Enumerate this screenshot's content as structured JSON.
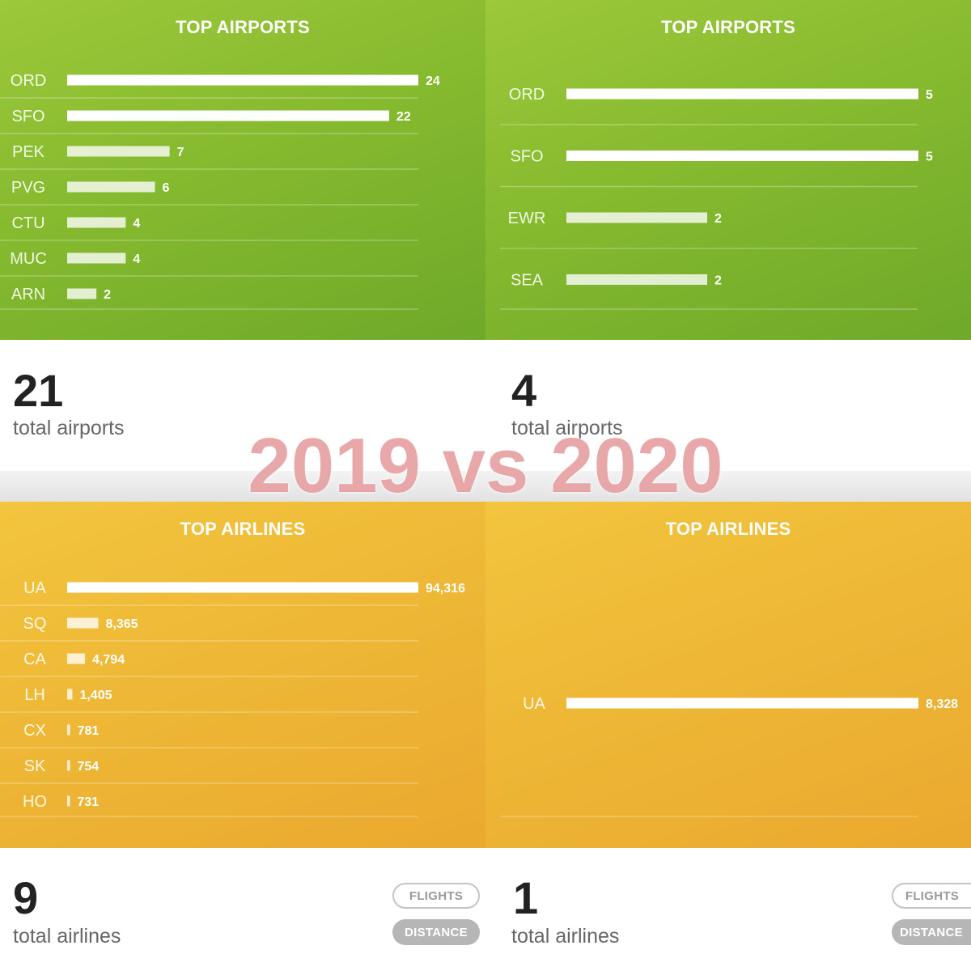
{
  "overlay_text": "2019 vs 2020",
  "panels": {
    "tl": {
      "title": "TOP AIRPORTS",
      "stat_number": "21",
      "stat_label": "total airports"
    },
    "tr": {
      "title": "TOP AIRPORTS",
      "stat_number": "4",
      "stat_label": "total airports"
    },
    "bl": {
      "title": "TOP AIRLINES",
      "stat_number": "9",
      "stat_label": "total airlines"
    },
    "br": {
      "title": "TOP AIRLINES",
      "stat_number": "1",
      "stat_label": "total airlines"
    }
  },
  "buttons": {
    "flights_label": "FLIGHTS",
    "distance_label": "DISTANCE"
  },
  "colors": {
    "airports_bg": "#86ba2f",
    "airlines_bg": "#eeb836",
    "bar": "#ffffff"
  },
  "chart_data": [
    {
      "type": "bar",
      "title": "TOP AIRPORTS",
      "categories": [
        "ORD",
        "SFO",
        "PEK",
        "PVG",
        "CTU",
        "MUC",
        "ARN"
      ],
      "values": [
        24,
        22,
        7,
        6,
        4,
        4,
        2
      ],
      "labels": [
        "24",
        "22",
        "7",
        "6",
        "4",
        "4",
        "2"
      ],
      "max": 24,
      "orientation": "horizontal"
    },
    {
      "type": "bar",
      "title": "TOP AIRPORTS",
      "categories": [
        "ORD",
        "SFO",
        "EWR",
        "SEA"
      ],
      "values": [
        5,
        5,
        2,
        2
      ],
      "labels": [
        "5",
        "5",
        "2",
        "2"
      ],
      "max": 5,
      "orientation": "horizontal"
    },
    {
      "type": "bar",
      "title": "TOP AIRLINES",
      "categories": [
        "UA",
        "SQ",
        "CA",
        "LH",
        "CX",
        "SK",
        "HO"
      ],
      "values": [
        94316,
        8365,
        4794,
        1405,
        781,
        754,
        731
      ],
      "labels": [
        "94,316",
        "8,365",
        "4,794",
        "1,405",
        "781",
        "754",
        "731"
      ],
      "max": 94316,
      "orientation": "horizontal"
    },
    {
      "type": "bar",
      "title": "TOP AIRLINES",
      "categories": [
        "UA"
      ],
      "values": [
        8328
      ],
      "labels": [
        "8,328"
      ],
      "max": 8328,
      "orientation": "horizontal"
    }
  ]
}
